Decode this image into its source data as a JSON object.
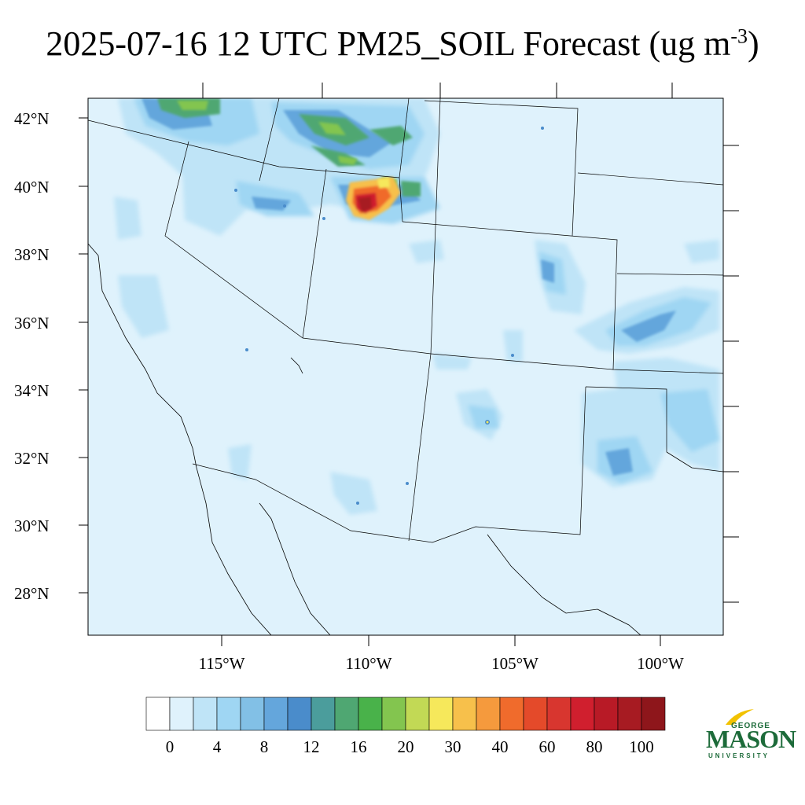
{
  "title": {
    "main": "2025-07-16 12 UTC PM25_SOIL Forecast (ug m",
    "sup": "-3",
    "close": ")"
  },
  "map": {
    "lat_labels": [
      "42°N",
      "40°N",
      "38°N",
      "36°N",
      "34°N",
      "32°N",
      "30°N",
      "28°N"
    ],
    "lon_labels": [
      "115°W",
      "110°W",
      "105°W",
      "100°W"
    ]
  },
  "colorbar": {
    "colors": [
      "#ffffff",
      "#dff2fc",
      "#bfe4f7",
      "#9fd6f3",
      "#82c0e6",
      "#64a6dc",
      "#4a8ccb",
      "#4b9d9c",
      "#4fa772",
      "#49b24a",
      "#83c54f",
      "#c2d955",
      "#f6e85b",
      "#f7c04b",
      "#f59a3d",
      "#f06b2c",
      "#e44a2a",
      "#d8362f",
      "#d01f2e",
      "#b81a26",
      "#a71b22",
      "#8e161b"
    ],
    "tick_labels": [
      "0",
      "4",
      "8",
      "12",
      "16",
      "20",
      "30",
      "40",
      "60",
      "80",
      "100"
    ]
  },
  "logo": {
    "george": "GEORGE",
    "mason": "MASON",
    "university": "UNIVERSITY"
  }
}
